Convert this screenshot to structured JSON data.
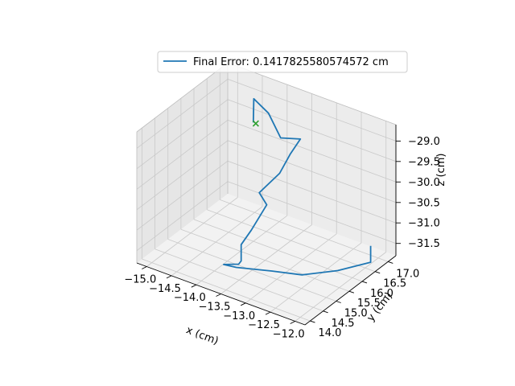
{
  "chart_data": {
    "type": "line3d",
    "title": "",
    "xlabel": "x (cm)",
    "ylabel": "y (cm)",
    "zlabel": "z (cm)",
    "grid": true,
    "legend_position": "top-center",
    "xticks": [
      -15.0,
      -14.5,
      -14.0,
      -13.5,
      -13.0,
      -12.5,
      -12.0
    ],
    "xtick_labels": [
      "−15.0",
      "−14.5",
      "−14.0",
      "−13.5",
      "−13.0",
      "−12.5",
      "−12.0"
    ],
    "yticks": [
      14.0,
      14.5,
      15.0,
      15.5,
      16.0,
      16.5,
      17.0
    ],
    "ytick_labels": [
      "14.0",
      "14.5",
      "15.0",
      "15.5",
      "16.0",
      "16.5",
      "17.0"
    ],
    "zticks": [
      -29.0,
      -29.5,
      -30.0,
      -30.5,
      -31.0,
      -31.5
    ],
    "ztick_labels": [
      "−29.0",
      "−29.5",
      "−30.0",
      "−30.5",
      "−31.0",
      "−31.5"
    ],
    "xlim": [
      -15.2,
      -11.8
    ],
    "ylim": [
      13.8,
      17.3
    ],
    "zlim": [
      -31.8,
      -28.6
    ],
    "series": [
      {
        "name": "Final Error: 0.1417825580574572 cm",
        "color": "#1f77b4",
        "points": [
          [
            -12.1,
            16.9,
            -31.5
          ],
          [
            -12.1,
            16.9,
            -31.9
          ],
          [
            -12.4,
            16.2,
            -31.9
          ],
          [
            -12.7,
            15.4,
            -31.75
          ],
          [
            -13.0,
            14.8,
            -31.5
          ],
          [
            -13.4,
            14.2,
            -31.3
          ],
          [
            -13.55,
            14.0,
            -31.2
          ],
          [
            -13.35,
            14.2,
            -31.2
          ],
          [
            -13.3,
            14.2,
            -31.1
          ],
          [
            -13.3,
            14.2,
            -30.7
          ],
          [
            -13.2,
            14.4,
            -30.4
          ],
          [
            -13.15,
            14.9,
            -30.0
          ],
          [
            -13.25,
            14.8,
            -29.7
          ],
          [
            -13.1,
            15.3,
            -29.4
          ],
          [
            -13.15,
            15.8,
            -29.2
          ],
          [
            -13.1,
            16.1,
            -28.95
          ],
          [
            -13.5,
            16.1,
            -29.1
          ],
          [
            -13.85,
            16.3,
            -28.75
          ],
          [
            -14.2,
            16.4,
            -28.6
          ],
          [
            -14.0,
            16.0,
            -28.9
          ]
        ]
      }
    ],
    "markers": [
      {
        "type": "x",
        "color": "#2ca02c",
        "point": [
          -13.95,
          16.0,
          -28.9
        ]
      }
    ]
  }
}
